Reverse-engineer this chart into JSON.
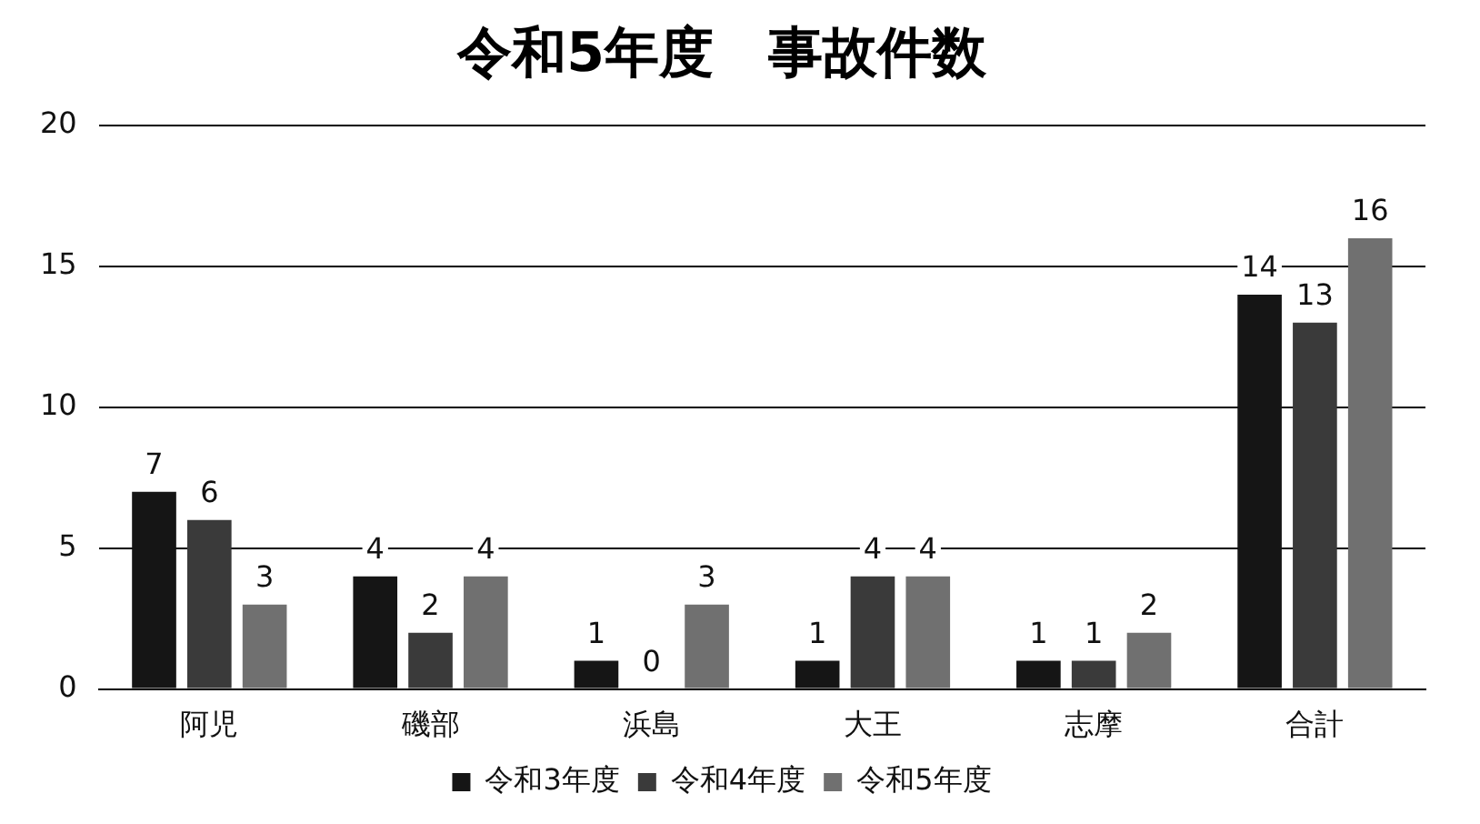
{
  "chart_data": {
    "type": "bar",
    "title": "令和5年度　事故件数",
    "categories": [
      "阿児",
      "磯部",
      "浜島",
      "大王",
      "志摩",
      "合計"
    ],
    "series": [
      {
        "name": "令和3年度",
        "color": "#151515",
        "values": [
          7,
          4,
          1,
          1,
          1,
          14
        ]
      },
      {
        "name": "令和4年度",
        "color": "#3a3a3a",
        "values": [
          6,
          2,
          0,
          4,
          1,
          13
        ]
      },
      {
        "name": "令和5年度",
        "color": "#707070",
        "values": [
          3,
          4,
          3,
          4,
          2,
          16
        ]
      }
    ],
    "ylim": [
      0,
      20
    ],
    "yticks": [
      0,
      5,
      10,
      15,
      20
    ],
    "grid": "y",
    "legend": "bottom",
    "data_labels": true
  }
}
